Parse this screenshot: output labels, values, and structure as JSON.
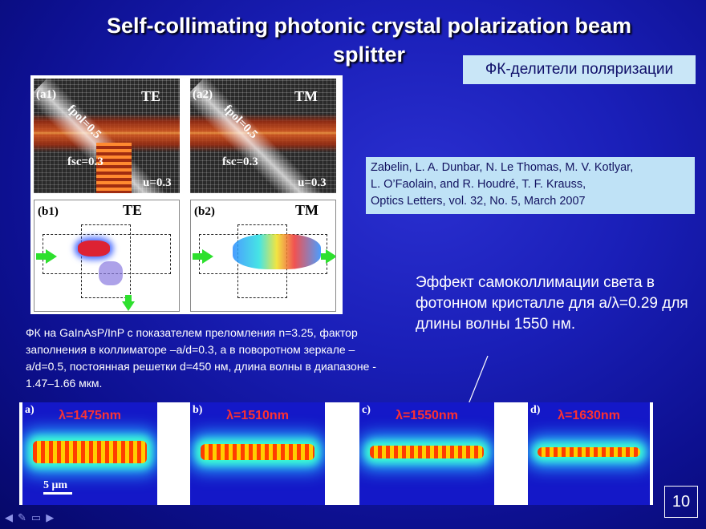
{
  "slide": {
    "title_line1": "Self-collimating photonic crystal polarization beam",
    "title_line2": "splitter",
    "tag": "ФК-делители поляризации",
    "citation": [
      "Zabelin, L. A. Dunbar, N. Le Thomas, M. V. Kotlyar,",
      "L. O’Faolain, and R. Houdré, T. F. Krauss,",
      "Optics Letters, vol. 32, No. 5, March 2007"
    ],
    "description": "ФК на GaInAsP/InP с показателем преломления n=3.25, фактор заполнения в коллиматоре –a/d=0.3, а в поворотном зеркале – a/d=0.5, постоянная решетки d=450 нм, длина волны в диапазоне - 1.47–1.66 мкм.",
    "effect_text": "Эффект самоколлимации света в фотонном кристалле для a/λ=0.29 для длины волны 1550 нм.",
    "page_number": "10"
  },
  "figure_top": {
    "a1": {
      "panel": "(a1)",
      "mode": "TE",
      "fpol": "fpol=0.5",
      "fsc": "fsc=0.3",
      "u": "u=0.3"
    },
    "a2": {
      "panel": "(a2)",
      "mode": "TM",
      "fpol": "fpol=0.5",
      "fsc": "fsc=0.3",
      "u": "u=0.3"
    },
    "b1": {
      "panel": "(b1)",
      "mode": "TE"
    },
    "b2": {
      "panel": "(b2)",
      "mode": "TM"
    }
  },
  "figure_bottom": {
    "panels": [
      {
        "label": "a)",
        "wavelength": "λ=1475nm"
      },
      {
        "label": "b)",
        "wavelength": "λ=1510nm"
      },
      {
        "label": "c)",
        "wavelength": "λ=1550nm"
      },
      {
        "label": "d)",
        "wavelength": "λ=1630nm"
      }
    ],
    "scale": "5 μm"
  },
  "nav_icons": [
    "prev-icon",
    "pen-icon",
    "menu-icon",
    "next-icon"
  ]
}
